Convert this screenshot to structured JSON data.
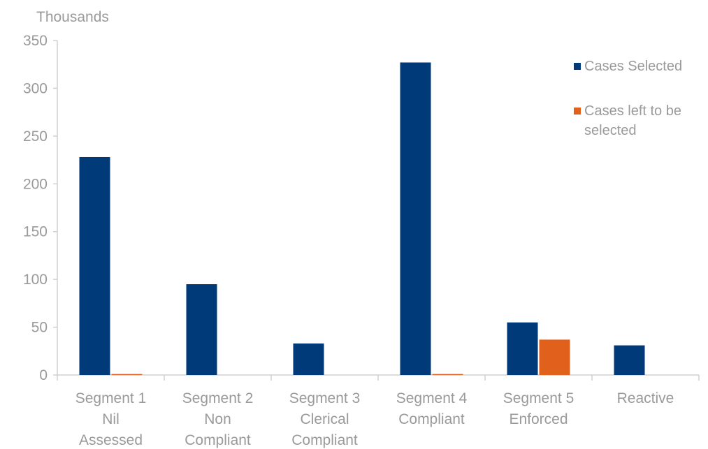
{
  "chart_data": {
    "type": "bar",
    "unit_label": "Thousands",
    "categories": [
      [
        "Segment 1",
        "Nil",
        "Assessed"
      ],
      [
        "Segment 2",
        "Non",
        "Compliant"
      ],
      [
        "Segment 3",
        "Clerical",
        "Compliant"
      ],
      [
        "Segment 4",
        "Compliant"
      ],
      [
        "Segment 5",
        "Enforced"
      ],
      [
        "Reactive"
      ]
    ],
    "series": [
      {
        "name": "Cases Selected",
        "color": "#003a78",
        "values": [
          228,
          95,
          33,
          327,
          55,
          31
        ]
      },
      {
        "name": "Cases left to be selected",
        "legend_lines": [
          "Cases left to be",
          "selected"
        ],
        "color": "#e0601c",
        "values": [
          1,
          0,
          0,
          1,
          37,
          0
        ]
      }
    ],
    "ylim": [
      0,
      350
    ],
    "y_ticks": [
      "0",
      "50",
      "100",
      "150",
      "200",
      "250",
      "300",
      "350"
    ],
    "grid": false,
    "legend_position": "top-right"
  }
}
